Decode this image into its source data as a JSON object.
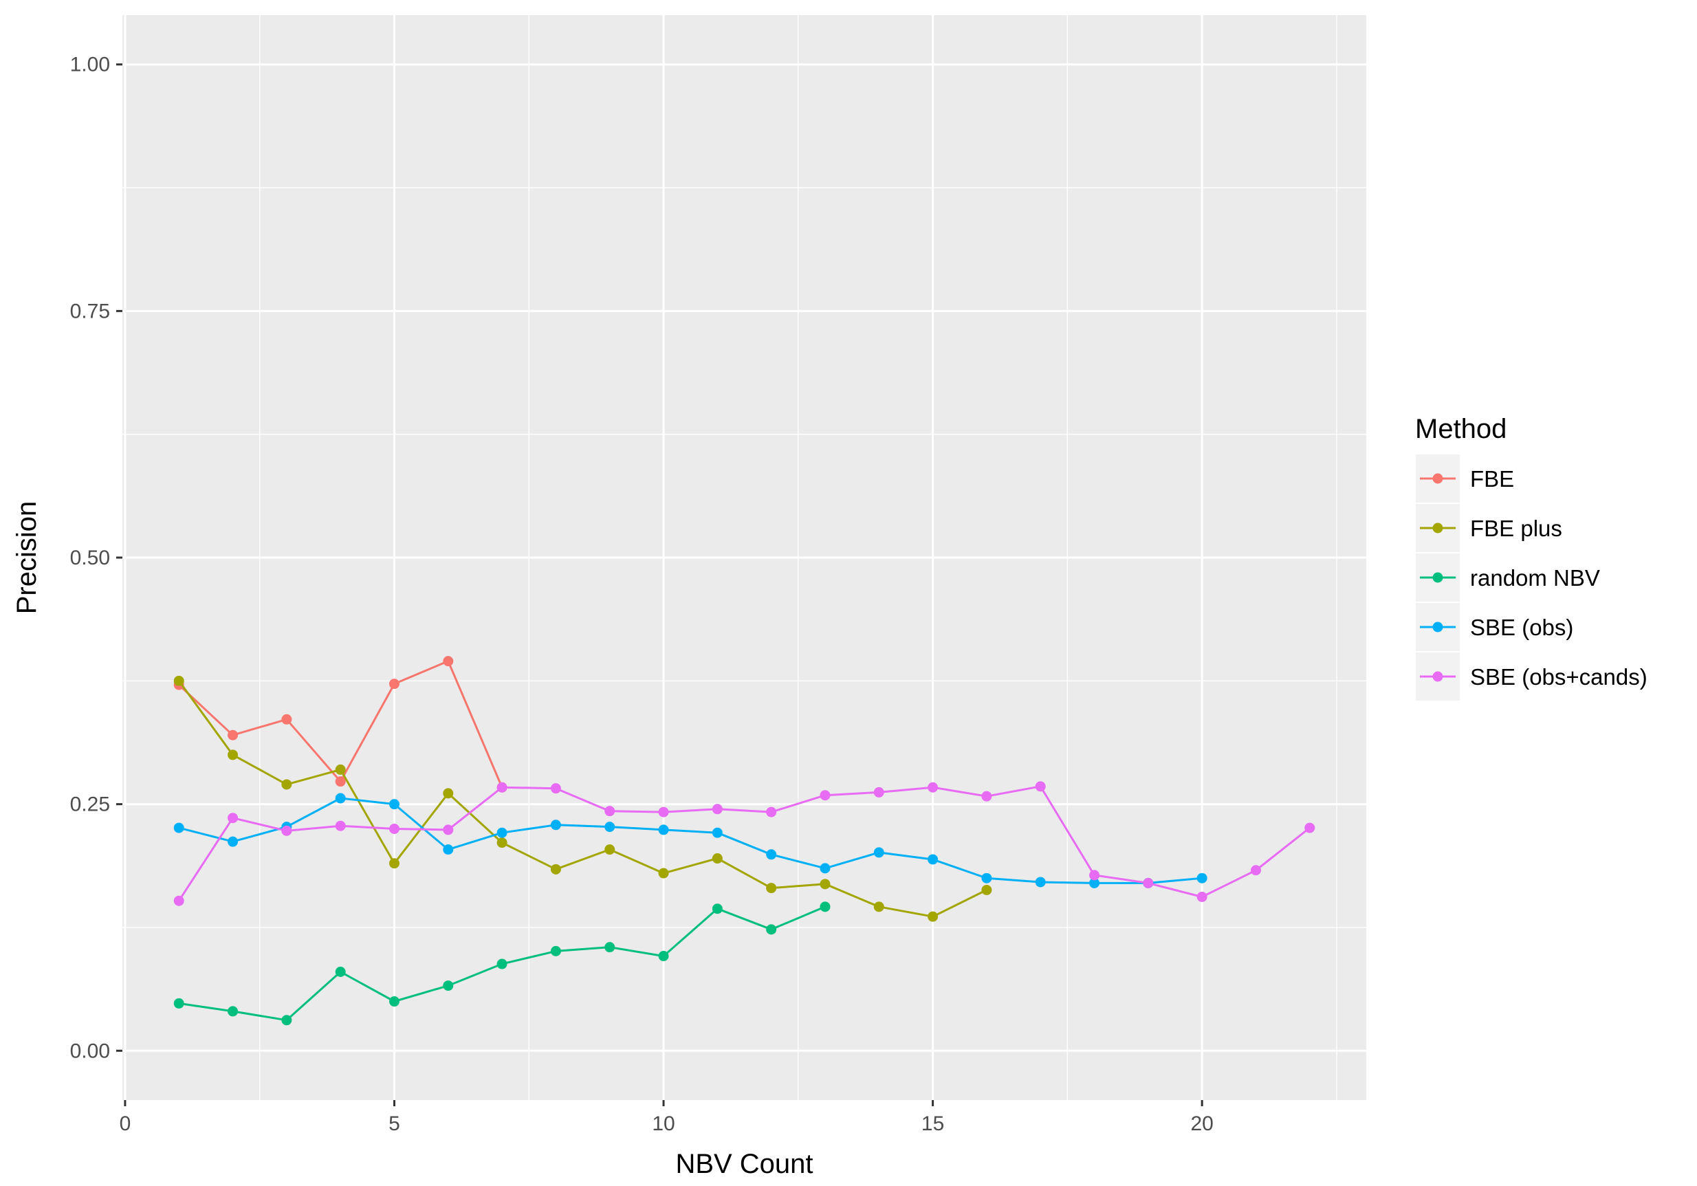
{
  "chart_data": {
    "type": "line",
    "title": "",
    "xlabel": "NBV Count",
    "ylabel": "Precision",
    "xlim": [
      -0.05,
      23.05
    ],
    "ylim": [
      -0.05,
      1.05
    ],
    "x_ticks": [
      0,
      5,
      10,
      15,
      20
    ],
    "x_tick_labels": [
      "0",
      "5",
      "10",
      "15",
      "20"
    ],
    "x_minor_ticks": [
      2.5,
      7.5,
      12.5,
      17.5,
      22.5
    ],
    "y_ticks": [
      0,
      0.25,
      0.5,
      0.75,
      1.0
    ],
    "y_tick_labels": [
      "0.00",
      "0.25",
      "0.50",
      "0.75",
      "1.00"
    ],
    "y_minor_ticks": [
      0.125,
      0.375,
      0.625,
      0.875
    ],
    "grid": true,
    "background": "#EBEBEB",
    "legend": {
      "title": "Method",
      "position": "right"
    },
    "series": [
      {
        "name": "FBE",
        "color": "#F8766D",
        "x": [
          1,
          2,
          3,
          4,
          5,
          6,
          7
        ],
        "y": [
          0.371,
          0.32,
          0.336,
          0.273,
          0.372,
          0.395,
          0.267
        ]
      },
      {
        "name": "FBE plus",
        "color": "#A3A500",
        "x": [
          1,
          2,
          3,
          4,
          5,
          6,
          7,
          8,
          9,
          10,
          11,
          12,
          13,
          14,
          15,
          16
        ],
        "y": [
          0.375,
          0.3,
          0.27,
          0.285,
          0.19,
          0.261,
          0.211,
          0.184,
          0.204,
          0.18,
          0.195,
          0.165,
          0.169,
          0.146,
          0.136,
          0.163
        ]
      },
      {
        "name": "random NBV",
        "color": "#00BF7D",
        "x": [
          1,
          2,
          3,
          4,
          5,
          6,
          7,
          8,
          9,
          10,
          11,
          12,
          13
        ],
        "y": [
          0.048,
          0.04,
          0.031,
          0.08,
          0.05,
          0.066,
          0.088,
          0.101,
          0.105,
          0.096,
          0.144,
          0.123,
          0.146
        ]
      },
      {
        "name": "SBE (obs)",
        "color": "#00B0F6",
        "x": [
          1,
          2,
          3,
          4,
          5,
          6,
          7,
          8,
          9,
          10,
          11,
          12,
          13,
          14,
          15,
          16,
          17,
          18,
          19,
          20
        ],
        "y": [
          0.226,
          0.212,
          0.227,
          0.256,
          0.25,
          0.204,
          0.221,
          0.229,
          0.227,
          0.224,
          0.221,
          0.199,
          0.185,
          0.201,
          0.194,
          0.175,
          0.171,
          0.17,
          0.17,
          0.175
        ]
      },
      {
        "name": "SBE (obs+cands)",
        "color": "#E76BF3",
        "x": [
          1,
          2,
          3,
          4,
          5,
          6,
          7,
          8,
          9,
          10,
          11,
          12,
          13,
          14,
          15,
          16,
          17,
          18,
          19,
          20,
          21,
          22
        ],
        "y": [
          0.152,
          0.236,
          0.223,
          0.228,
          0.225,
          0.224,
          0.267,
          0.266,
          0.243,
          0.242,
          0.245,
          0.242,
          0.259,
          0.262,
          0.267,
          0.258,
          0.268,
          0.178,
          0.17,
          0.156,
          0.183,
          0.226
        ]
      }
    ]
  }
}
